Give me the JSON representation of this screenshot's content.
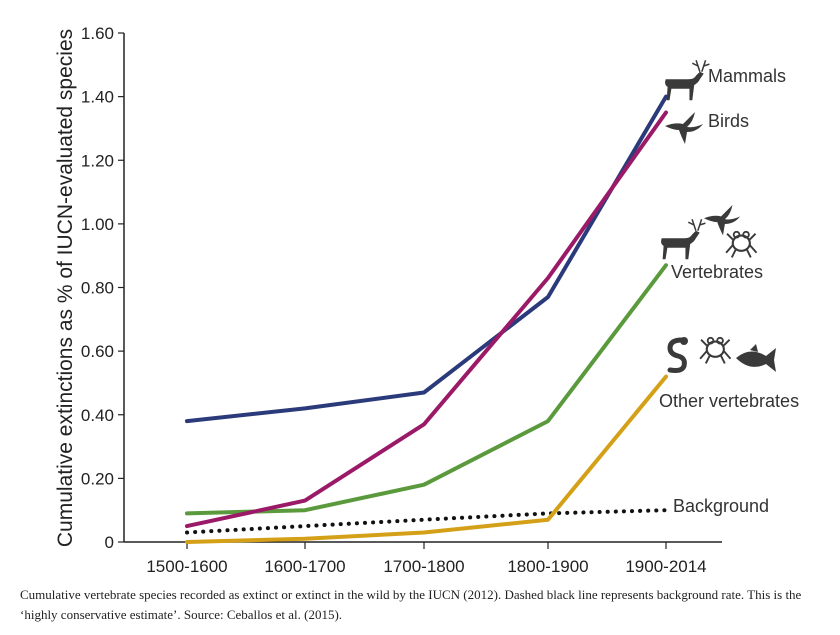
{
  "chart_data": {
    "type": "line",
    "ylabel": "Cumulative extinctions as % of IUCN-evaluated species",
    "xlabel": "",
    "categories": [
      "1500-1600",
      "1600-1700",
      "1700-1800",
      "1800-1900",
      "1900-2014"
    ],
    "ylim": [
      0,
      1.6
    ],
    "yticks": [
      "0",
      "0.20",
      "0.40",
      "0.60",
      "0.80",
      "1.00",
      "1.20",
      "1.40",
      "1.60"
    ],
    "grid": false,
    "series": [
      {
        "name": "Mammals",
        "color": "#2a3a7a",
        "style": "solid",
        "icon": "deer-icon",
        "values": [
          0.38,
          0.42,
          0.47,
          0.77,
          1.4
        ]
      },
      {
        "name": "Birds",
        "color": "#9b1a68",
        "style": "solid",
        "icon": "bird-icon",
        "values": [
          0.05,
          0.13,
          0.37,
          0.83,
          1.35
        ]
      },
      {
        "name": "Vertebrates",
        "color": "#5a9a3c",
        "style": "solid",
        "icon": "vertebrates-icon",
        "values": [
          0.09,
          0.1,
          0.18,
          0.38,
          0.87
        ]
      },
      {
        "name": "Other vertebrates",
        "color": "#d4a017",
        "style": "solid",
        "icon": "other-vertebrates-icon",
        "values": [
          0.0,
          0.01,
          0.03,
          0.07,
          0.52
        ]
      },
      {
        "name": "Background",
        "color": "#111111",
        "style": "dotted",
        "icon": "",
        "values": [
          0.03,
          0.05,
          0.07,
          0.09,
          0.1
        ]
      }
    ]
  },
  "caption": "Cumulative vertebrate species recorded as extinct or extinct in the wild by the IUCN (2012). Dashed black line represents background rate. This is the ‘highly conservative estimate’. Source: Ceballos et al. (2015)."
}
